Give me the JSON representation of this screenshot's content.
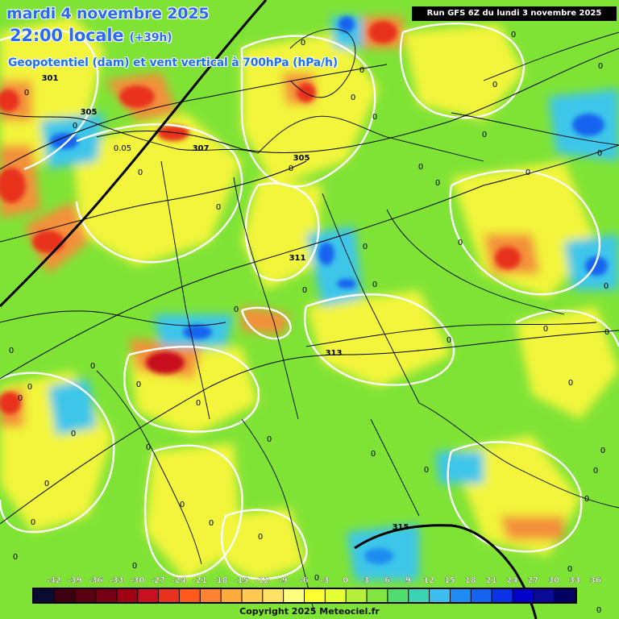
{
  "header": {
    "date": "mardi 4 novembre 2025",
    "time": "22:00 locale",
    "offset": "(+39h)",
    "parameter": "Geopotentiel (dam) et vent vertical à 700hPa (hPa/h)",
    "run": "Run GFS 6Z du lundi 3 novembre 2025"
  },
  "footer": {
    "copyright": "Copyright 2025 Meteociel.fr"
  },
  "colors": {
    "field_background": "#7fe336",
    "contour": "#ffffff",
    "coastline": "#000000",
    "isohypse": "#000000"
  },
  "legend": {
    "labels": [
      "-42",
      "-39",
      "-36",
      "-33",
      "-30",
      "-27",
      "-24",
      "-21",
      "-18",
      "-15",
      "-12",
      "-9",
      "-6",
      "-3",
      "0",
      "3",
      "6",
      "9",
      "12",
      "15",
      "18",
      "21",
      "24",
      "27",
      "30",
      "33",
      "36"
    ],
    "colors": [
      "#0a0a32",
      "#3c0010",
      "#5a0010",
      "#780014",
      "#a00014",
      "#c8101e",
      "#e6321e",
      "#ff5a1e",
      "#ff8232",
      "#ffaa3c",
      "#ffc850",
      "#ffe164",
      "#ffff80",
      "#ffff32",
      "#e6ff32",
      "#b4f03c",
      "#82e641",
      "#50dc6e",
      "#3cd2b4",
      "#3cbef0",
      "#1e8cf0",
      "#1464f0",
      "#0a32e6",
      "#0000c8",
      "#0a0a96",
      "#000064"
    ]
  },
  "isohypse_labels": [
    "301",
    "305",
    "307",
    "305",
    "311",
    "313",
    "315"
  ],
  "zero_labels": [
    "0",
    "0",
    "0",
    "0",
    "0",
    "0",
    "0",
    "0",
    "0",
    "0",
    "0",
    "0",
    "0",
    "0",
    "0",
    "0",
    "0",
    "0",
    "0",
    "0",
    "0",
    "0",
    "0",
    "0",
    "0",
    "0",
    "0",
    "0",
    "0",
    "0",
    "0",
    "0",
    "0",
    "0",
    "0",
    "0",
    "0",
    "0",
    "0",
    "0",
    "0",
    "0",
    "0",
    "0",
    "0",
    "0",
    "0",
    "0",
    "0",
    "0",
    "0"
  ],
  "small_labels": [
    "0.05"
  ]
}
